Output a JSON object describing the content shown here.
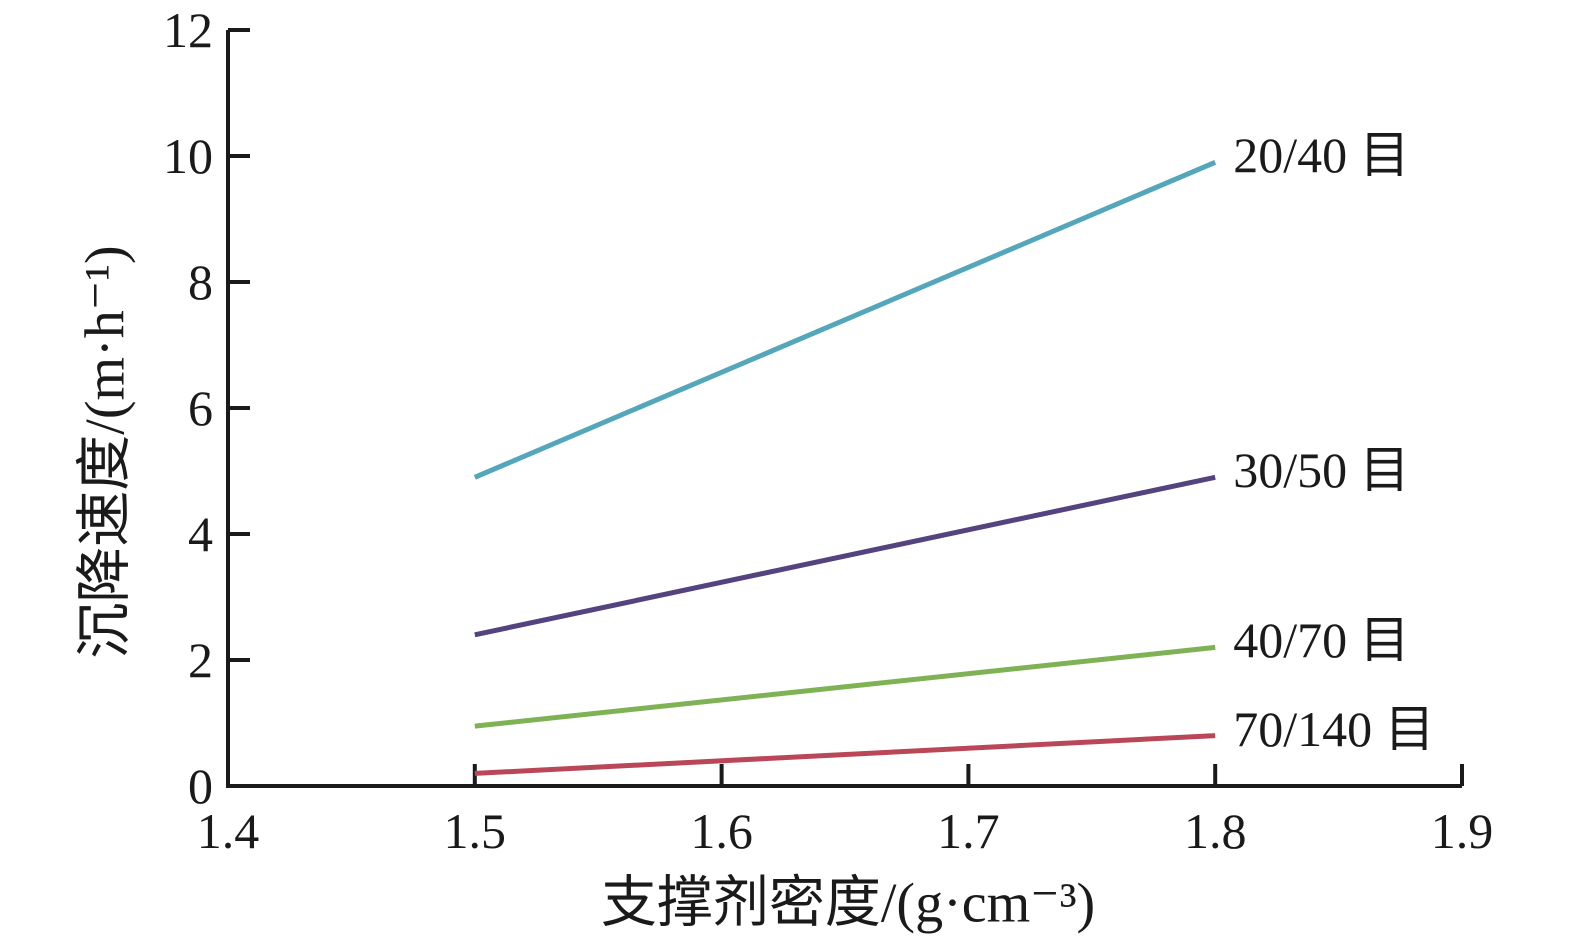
{
  "chart_data": {
    "type": "line",
    "title": "",
    "xlabel": "支撑剂密度/(g·cm⁻³)",
    "ylabel": "沉降速度/(m·h⁻¹)",
    "xlim": [
      1.4,
      1.9
    ],
    "ylim": [
      0,
      12
    ],
    "grid": false,
    "axis_color": "#1a1a1a",
    "x_ticks": [
      {
        "value": 1.4,
        "label": "1.4"
      },
      {
        "value": 1.5,
        "label": "1.5"
      },
      {
        "value": 1.6,
        "label": "1.6"
      },
      {
        "value": 1.7,
        "label": "1.7"
      },
      {
        "value": 1.8,
        "label": "1.8"
      },
      {
        "value": 1.9,
        "label": "1.9"
      }
    ],
    "y_ticks": [
      {
        "value": 0,
        "label": "0"
      },
      {
        "value": 2,
        "label": "2"
      },
      {
        "value": 4,
        "label": "4"
      },
      {
        "value": 6,
        "label": "6"
      },
      {
        "value": 8,
        "label": "8"
      },
      {
        "value": 10,
        "label": "10"
      },
      {
        "value": 12,
        "label": "12"
      }
    ],
    "legend_position": "labels-at-line-ends",
    "series": [
      {
        "name": "20/40 目",
        "color": "#54a7ba",
        "x": [
          1.5,
          1.8
        ],
        "y": [
          4.9,
          9.9
        ]
      },
      {
        "name": "30/50 目",
        "color": "#54437e",
        "x": [
          1.5,
          1.8
        ],
        "y": [
          2.4,
          4.9
        ]
      },
      {
        "name": "40/70 目",
        "color": "#7fb254",
        "x": [
          1.5,
          1.8
        ],
        "y": [
          0.95,
          2.2
        ]
      },
      {
        "name": "70/140 目",
        "color": "#ba4758",
        "x": [
          1.5,
          1.8
        ],
        "y": [
          0.2,
          0.8
        ]
      }
    ]
  }
}
